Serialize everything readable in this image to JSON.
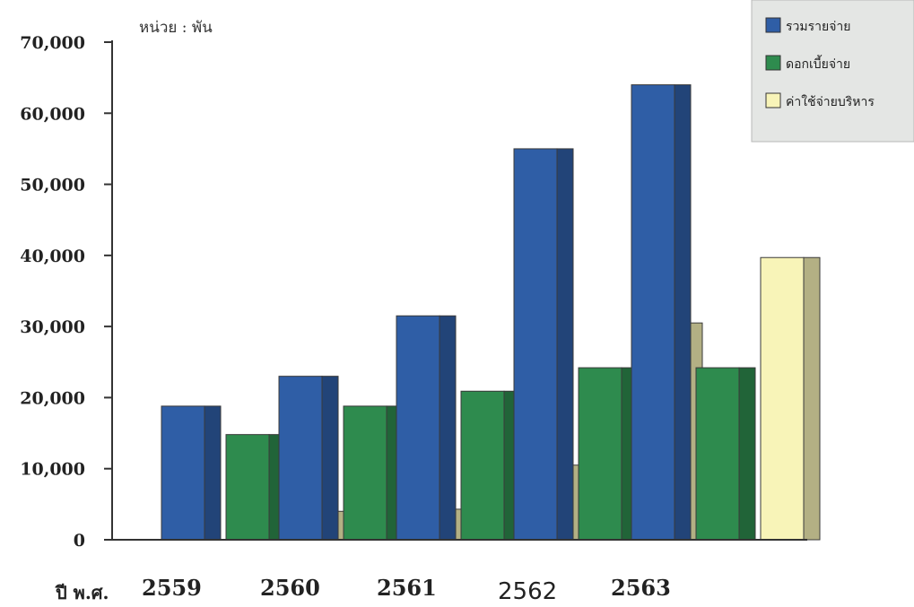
{
  "chart_data": {
    "type": "bar",
    "unit_label": "หน่วย : พัน",
    "xlabel": "ปี พ.ศ.",
    "ylabel": "",
    "categories": [
      "2559",
      "2560",
      "2561",
      "2562",
      "2563"
    ],
    "series": [
      {
        "name": "รวมรายจ่าย",
        "color": "#2f5ea6",
        "values": [
          18800,
          23000,
          31500,
          55000,
          64000
        ]
      },
      {
        "name": "ดอกเบี้ยจ่าย",
        "color": "#2e8b4e",
        "values": [
          14800,
          18800,
          20900,
          24200,
          24200
        ]
      },
      {
        "name": "ค่าใช้จ่ายบริหาร",
        "color": "#f8f4b8",
        "values": [
          4000,
          4300,
          10500,
          30500,
          39700
        ]
      }
    ],
    "ylim": [
      0,
      70000
    ],
    "yticks": [
      0,
      10000,
      20000,
      30000,
      40000,
      50000,
      60000,
      70000
    ],
    "ytick_labels": [
      "0",
      "10,000",
      "20,000",
      "30,000",
      "40,000",
      "50,000",
      "60,000",
      "70,000"
    ],
    "grid": false,
    "legend_position": "top-right"
  }
}
